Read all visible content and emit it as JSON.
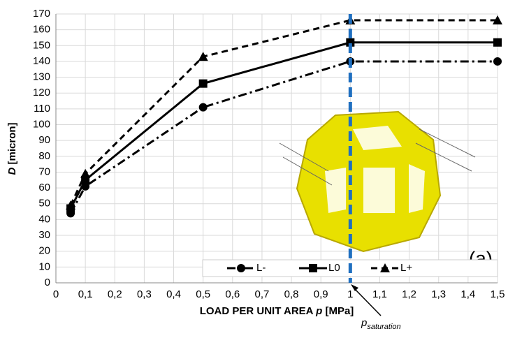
{
  "chart_data": {
    "type": "line",
    "ylabel": {
      "var": "D",
      "rest": " [micron]"
    },
    "xlabel": {
      "pre": "LOAD PER UNIT AREA ",
      "var": "p",
      "post": " [MPa]"
    },
    "x": [
      0.05,
      0.1,
      0.5,
      1,
      1.5
    ],
    "series": [
      {
        "name": "L-",
        "color": "#000000",
        "marker": "circle",
        "dash": "dashdot",
        "values": [
          44,
          61,
          111,
          140,
          140
        ]
      },
      {
        "name": "L0",
        "color": "#000000",
        "marker": "square",
        "dash": "solid",
        "values": [
          47,
          65,
          126,
          152,
          152
        ]
      },
      {
        "name": "L+",
        "color": "#000000",
        "marker": "triangle",
        "dash": "dashed",
        "values": [
          49,
          69,
          143,
          166,
          166
        ]
      }
    ],
    "xlim": [
      0,
      1.5
    ],
    "xticks": [
      0,
      {
        "value": 0.1,
        "label": "0,1"
      },
      {
        "value": 0.2,
        "label": "0,2"
      },
      {
        "value": 0.3,
        "label": "0,3"
      },
      {
        "value": 0.4,
        "label": "0,4"
      },
      {
        "value": 0.5,
        "label": "0,5"
      },
      {
        "value": 0.6,
        "label": "0,6"
      },
      {
        "value": 0.7,
        "label": "0,7"
      },
      {
        "value": 0.8,
        "label": "0,8"
      },
      {
        "value": 0.9,
        "label": "0,9"
      },
      1,
      {
        "value": 1.1,
        "label": "1,1"
      },
      {
        "value": 1.2,
        "label": "1,2"
      },
      {
        "value": 1.3,
        "label": "1,3"
      },
      {
        "value": 1.4,
        "label": "1,4"
      },
      {
        "value": 1.5,
        "label": "1,5"
      }
    ],
    "ylim": [
      0,
      170
    ],
    "yticks": [
      0,
      10,
      20,
      30,
      40,
      50,
      60,
      70,
      80,
      90,
      100,
      110,
      120,
      130,
      140,
      150,
      160,
      170
    ],
    "grid": true,
    "vline": {
      "x": 1,
      "color": "#1f6fc0"
    },
    "annotations": {
      "panel": "(a)",
      "p": "p",
      "sub": "saturation"
    }
  }
}
